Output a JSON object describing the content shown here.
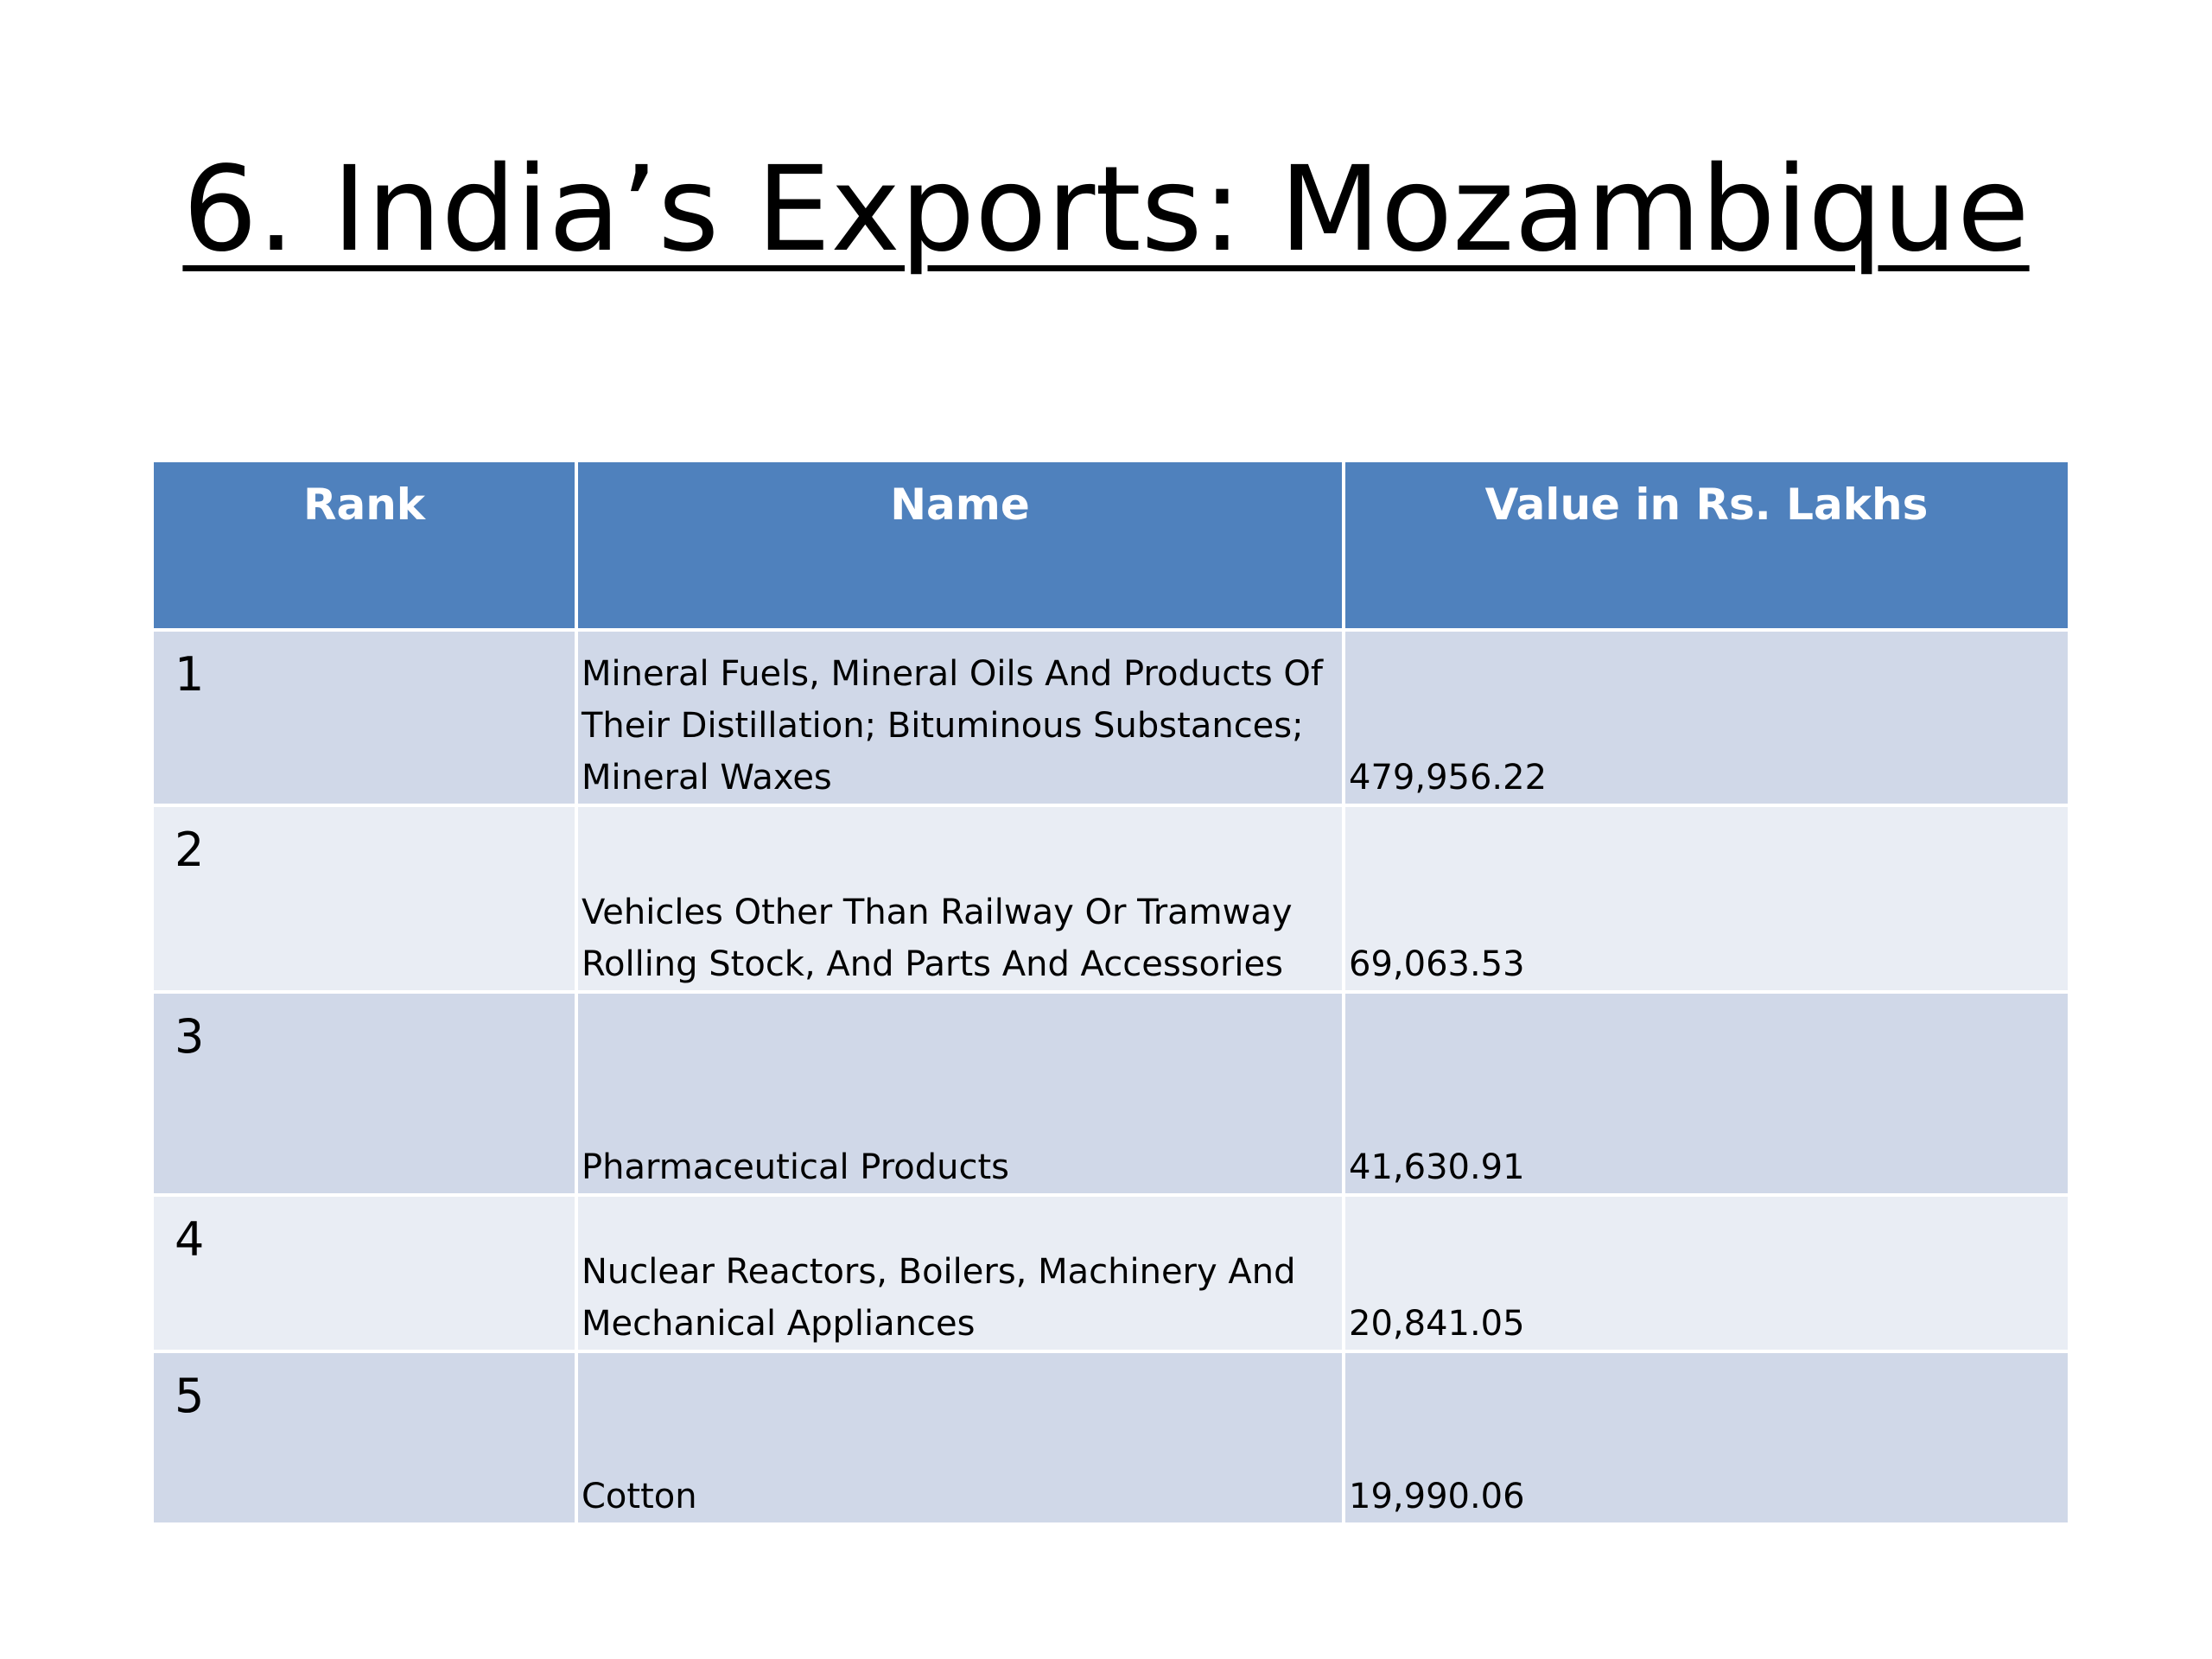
{
  "title": "6. India’s Exports: Mozambique",
  "table": {
    "headers": {
      "rank": "Rank",
      "name": "Name",
      "value": "Value in Rs. Lakhs"
    },
    "rows": [
      {
        "rank": "1",
        "name": "Mineral Fuels, Mineral Oils And Products Of Their Distillation; Bituminous Substances; Mineral Waxes",
        "value": "479,956.22"
      },
      {
        "rank": "2",
        "name": "Vehicles Other Than Railway Or Tramway Rolling Stock, And Parts And Accessories",
        "value": "69,063.53"
      },
      {
        "rank": "3",
        "name": "Pharmaceutical Products",
        "value": "41,630.91"
      },
      {
        "rank": "4",
        "name": "Nuclear Reactors, Boilers, Machinery And Mechanical Appliances",
        "value": "20,841.05"
      },
      {
        "rank": "5",
        "name": "Cotton",
        "value": "19,990.06"
      }
    ]
  },
  "colors": {
    "header_bg": "#4f81bd",
    "row_odd_bg": "#d0d8e8",
    "row_even_bg": "#e9edf4",
    "header_text": "#ffffff"
  }
}
